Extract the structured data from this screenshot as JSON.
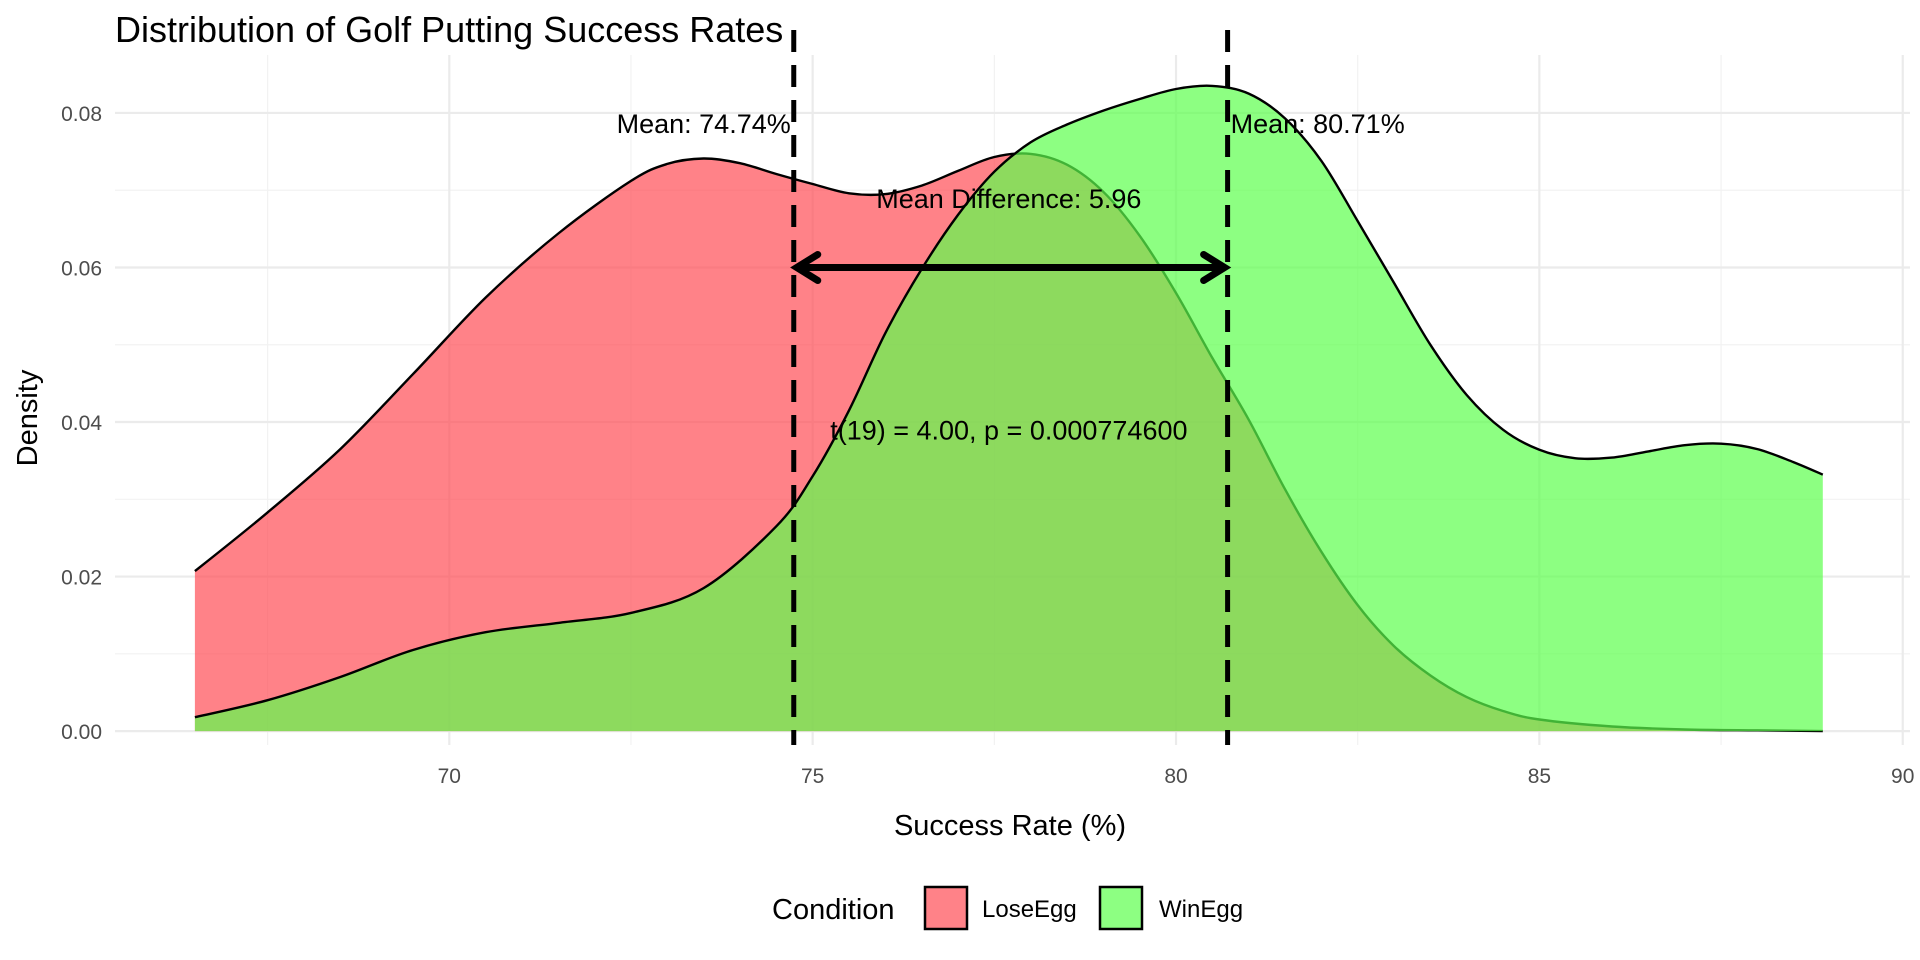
{
  "chart_data": {
    "type": "area",
    "title": "Distribution of Golf Putting Success Rates",
    "xlabel": "Success Rate (%)",
    "ylabel": "Density",
    "xlim": [
      65.4,
      90.1
    ],
    "ylim": [
      -0.0018,
      0.0875
    ],
    "x_ticks": [
      70,
      75,
      80,
      85,
      90
    ],
    "x_tick_labels": [
      "70",
      "75",
      "80",
      "85",
      "90"
    ],
    "y_ticks": [
      0,
      0.02,
      0.04,
      0.06,
      0.08
    ],
    "y_tick_labels": [
      "0.00",
      "0.02",
      "0.04",
      "0.06",
      "0.08"
    ],
    "grid": true,
    "legend": {
      "title": "Condition",
      "position": "bottom"
    },
    "series": [
      {
        "name": "LoseEgg",
        "color": "#ff4d55",
        "x": [
          66.5,
          67.5,
          68.5,
          69.5,
          70.5,
          71.5,
          72.5,
          73.0,
          73.5,
          74.0,
          74.5,
          75.0,
          75.5,
          76.0,
          76.5,
          77.0,
          77.5,
          78.0,
          78.5,
          79.0,
          79.5,
          80.0,
          80.5,
          81.0,
          81.5,
          82.0,
          82.5,
          83.0,
          83.5,
          84.0,
          84.5,
          85.0,
          86.0,
          87.0,
          88.0,
          88.9
        ],
        "y": [
          0.0207,
          0.0283,
          0.0365,
          0.0462,
          0.0561,
          0.0644,
          0.0712,
          0.0734,
          0.0741,
          0.0735,
          0.0721,
          0.0708,
          0.0696,
          0.0695,
          0.0706,
          0.0725,
          0.0743,
          0.0747,
          0.0733,
          0.0698,
          0.0641,
          0.0567,
          0.0483,
          0.0403,
          0.0313,
          0.0232,
          0.0163,
          0.011,
          0.0072,
          0.0044,
          0.0026,
          0.0015,
          0.0006,
          0.0002,
          0.0001,
          0.0
        ]
      },
      {
        "name": "WinEgg",
        "color": "#5cff4d",
        "x": [
          66.5,
          67.5,
          68.5,
          69.5,
          70.5,
          71.5,
          72.5,
          73.5,
          74.5,
          75.0,
          75.5,
          76.0,
          76.5,
          77.0,
          77.5,
          78.0,
          78.5,
          79.0,
          79.5,
          80.0,
          80.5,
          81.0,
          81.5,
          82.0,
          82.5,
          83.0,
          83.5,
          84.0,
          84.5,
          85.0,
          85.5,
          86.0,
          86.5,
          87.0,
          87.5,
          88.0,
          88.5,
          88.9
        ],
        "y": [
          0.0018,
          0.004,
          0.007,
          0.0105,
          0.0128,
          0.014,
          0.0153,
          0.0185,
          0.0265,
          0.033,
          0.0415,
          0.0515,
          0.0598,
          0.0668,
          0.0724,
          0.0762,
          0.0785,
          0.0803,
          0.0818,
          0.0831,
          0.0835,
          0.0825,
          0.0793,
          0.0738,
          0.066,
          0.058,
          0.05,
          0.0435,
          0.039,
          0.0364,
          0.0353,
          0.0354,
          0.0362,
          0.037,
          0.0372,
          0.0365,
          0.0348,
          0.0332
        ]
      }
    ],
    "mean_lines": [
      {
        "x": 74.74,
        "label": "Mean: 74.74%"
      },
      {
        "x": 80.71,
        "label": "Mean: 80.71%"
      }
    ],
    "arrow": {
      "x_start": 74.74,
      "x_end": 80.71,
      "y": 0.06
    },
    "annotations": [
      {
        "text": "Mean Difference: 5.96",
        "x": 77.7,
        "y": 0.069
      },
      {
        "text": "t(19) = 4.00, p = 0.000774600",
        "x": 77.7,
        "y": 0.039
      }
    ]
  }
}
